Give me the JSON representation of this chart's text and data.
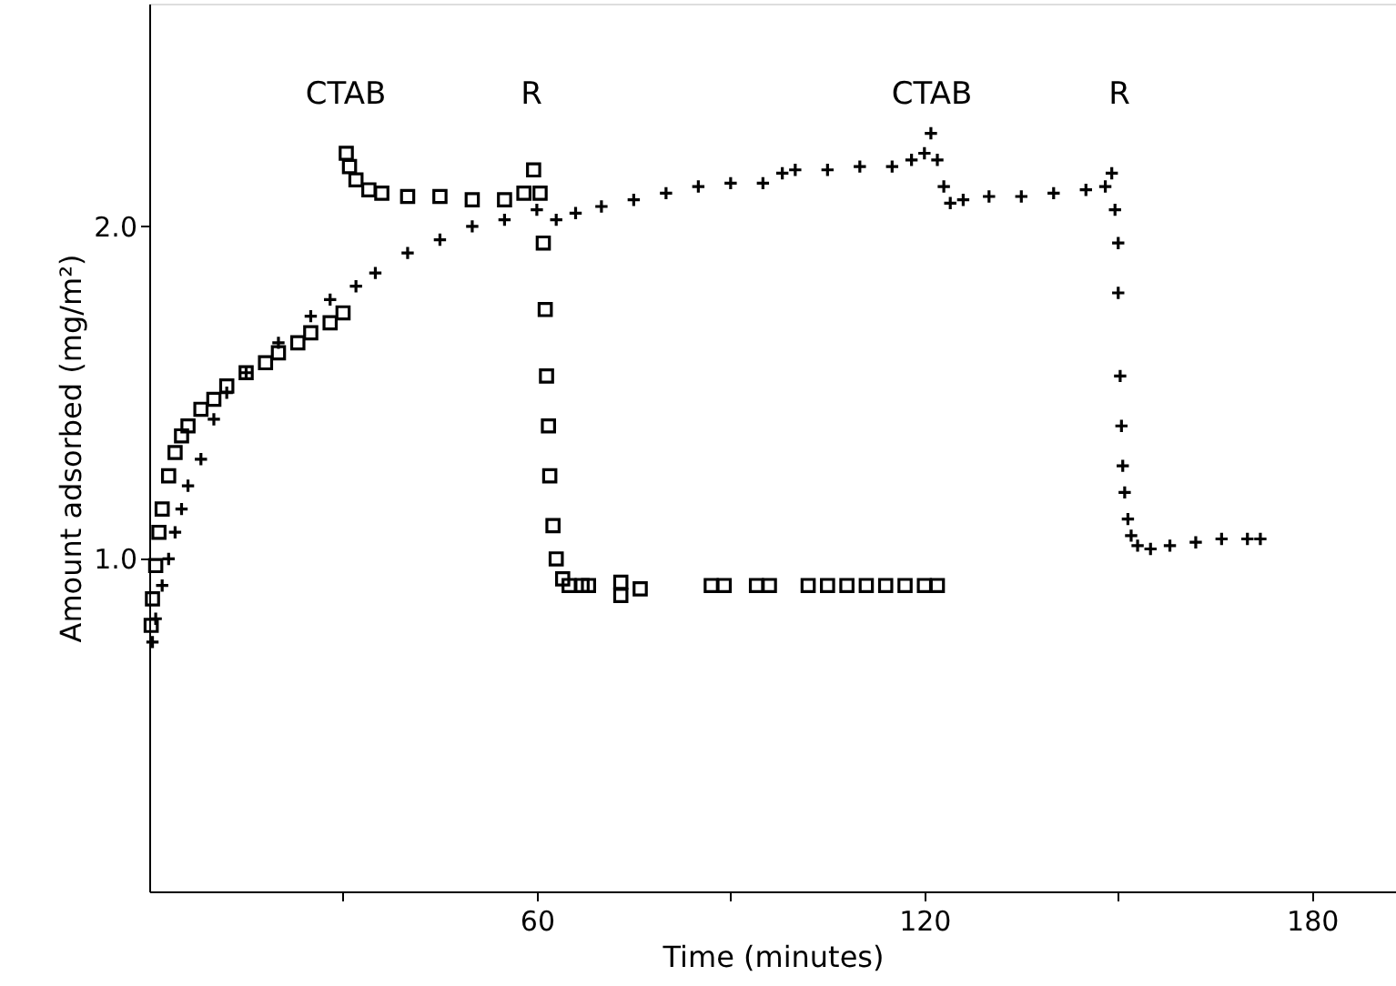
{
  "chart_data": {
    "type": "scatter",
    "xlabel": "Time (minutes)",
    "ylabel": "Amount adsorbed (mg/m²)",
    "xlim": [
      0,
      193
    ],
    "ylim": [
      0,
      2.67
    ],
    "xticks": [
      {
        "value": 30,
        "label": null
      },
      60,
      {
        "value": 90,
        "label": null
      },
      120,
      {
        "value": 150,
        "label": null
      },
      180
    ],
    "yticks": [
      {
        "value": 1,
        "label": "1.0"
      },
      {
        "value": 2,
        "label": "2.0"
      }
    ],
    "grid": false,
    "annotations": [
      "CTAB",
      "R",
      "CTAB",
      "R"
    ],
    "series": [
      {
        "color": "#000000",
        "marker": "square",
        "x": [
          0.3,
          0.5,
          1,
          1.5,
          2,
          3,
          4,
          5,
          6,
          8,
          10,
          12,
          15,
          18,
          20,
          23,
          25,
          28,
          30,
          30.5,
          31,
          32,
          34,
          36,
          40,
          45,
          50,
          55,
          58,
          59.5,
          60.5,
          61,
          61.3,
          61.5,
          61.8,
          62,
          62.5,
          63,
          64,
          65,
          67,
          68,
          73,
          73,
          76,
          87,
          89,
          94,
          96,
          102,
          105,
          108,
          111,
          114,
          117,
          120,
          122
        ],
        "values": [
          0.8,
          0.88,
          0.98,
          1.08,
          1.15,
          1.25,
          1.32,
          1.37,
          1.4,
          1.45,
          1.48,
          1.52,
          1.56,
          1.59,
          1.62,
          1.65,
          1.68,
          1.71,
          1.74,
          2.22,
          2.18,
          2.14,
          2.11,
          2.1,
          2.09,
          2.09,
          2.08,
          2.08,
          2.1,
          2.17,
          2.1,
          1.95,
          1.75,
          1.55,
          1.4,
          1.25,
          1.1,
          1.0,
          0.94,
          0.92,
          0.92,
          0.92,
          0.89,
          0.93,
          0.91,
          0.92,
          0.92,
          0.92,
          0.92,
          0.92,
          0.92,
          0.92,
          0.92,
          0.92,
          0.92,
          0.92,
          0.92
        ]
      },
      {
        "color": "#000000",
        "marker": "cross",
        "x": [
          0.5,
          1,
          2,
          3,
          4,
          5,
          6,
          8,
          10,
          12,
          15,
          20,
          25,
          28,
          32,
          35,
          40,
          45,
          50,
          55,
          60,
          63,
          66,
          70,
          75,
          80,
          85,
          90,
          95,
          98,
          100,
          105,
          110,
          115,
          118,
          120,
          121,
          122,
          123,
          124,
          126,
          130,
          135,
          140,
          145,
          148,
          149,
          149.5,
          150,
          150,
          150.3,
          150.5,
          150.7,
          151,
          151.5,
          152,
          153,
          155,
          158,
          162,
          166,
          170,
          172
        ],
        "values": [
          0.75,
          0.82,
          0.92,
          1.0,
          1.08,
          1.15,
          1.22,
          1.3,
          1.42,
          1.5,
          1.56,
          1.65,
          1.73,
          1.78,
          1.82,
          1.86,
          1.92,
          1.96,
          2.0,
          2.02,
          2.05,
          2.02,
          2.04,
          2.06,
          2.08,
          2.1,
          2.12,
          2.13,
          2.13,
          2.16,
          2.17,
          2.17,
          2.18,
          2.18,
          2.2,
          2.22,
          2.28,
          2.2,
          2.12,
          2.07,
          2.08,
          2.09,
          2.09,
          2.1,
          2.11,
          2.12,
          2.16,
          2.05,
          1.95,
          1.8,
          1.55,
          1.4,
          1.28,
          1.2,
          1.12,
          1.07,
          1.04,
          1.03,
          1.04,
          1.05,
          1.06,
          1.06,
          1.06
        ]
      }
    ]
  }
}
